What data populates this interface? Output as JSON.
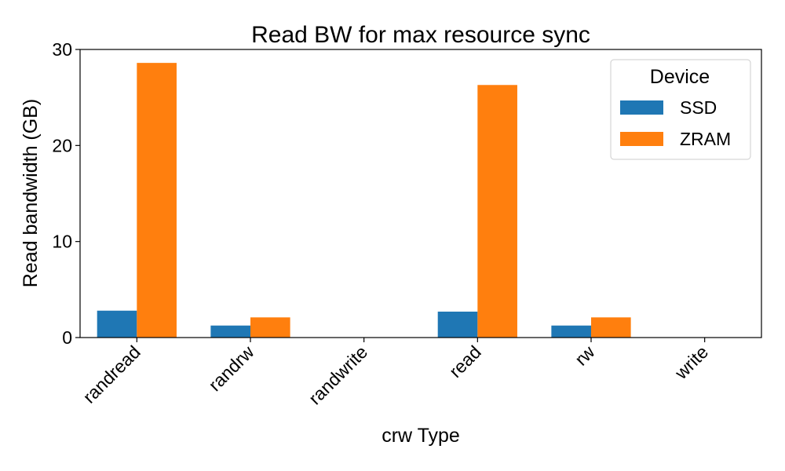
{
  "chart_data": {
    "type": "bar",
    "title": "Read BW for max resource sync",
    "xlabel": "crw Type",
    "ylabel": "Read bandwidth (GB)",
    "categories": [
      "randread",
      "randrw",
      "randwrite",
      "read",
      "rw",
      "write"
    ],
    "series": [
      {
        "name": "SSD",
        "color": "#1f77b4",
        "values": [
          2.8,
          1.25,
          0,
          2.7,
          1.25,
          0
        ]
      },
      {
        "name": "ZRAM",
        "color": "#ff7f0e",
        "values": [
          28.6,
          2.1,
          0,
          26.3,
          2.1,
          0
        ]
      }
    ],
    "ylim": [
      0,
      30
    ],
    "yticks": [
      0,
      10,
      20,
      30
    ],
    "legend": {
      "title": "Device",
      "placement": "top-right"
    },
    "grid": false
  }
}
